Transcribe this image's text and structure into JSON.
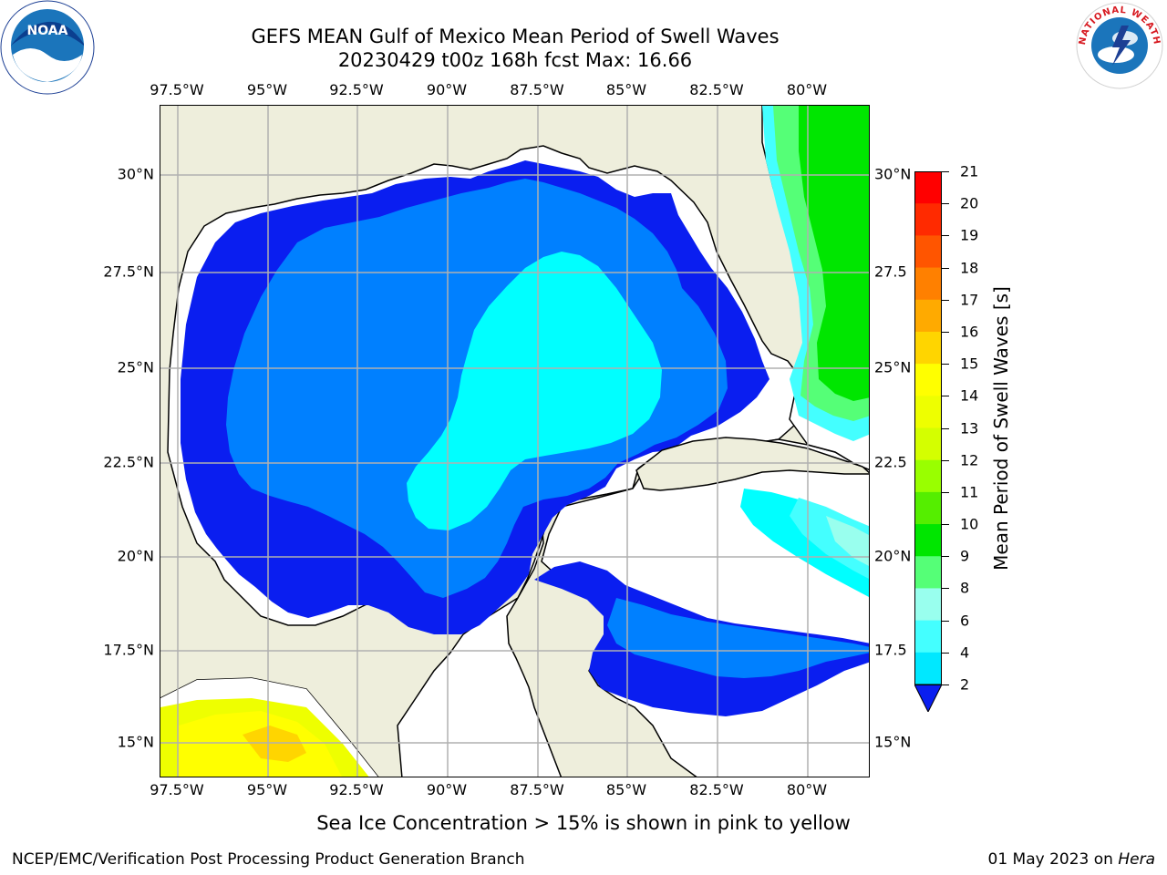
{
  "header": {
    "title_line1": "GEFS MEAN Gulf of Mexico Mean Period of Swell Waves",
    "title_line2": "20230429 t00z 168h fcst   Max: 16.66"
  },
  "axes": {
    "lon_labels": [
      "97.5°W",
      "95°W",
      "92.5°W",
      "90°W",
      "87.5°W",
      "85°W",
      "82.5°W",
      "80°W"
    ],
    "lat_labels_left": [
      "30°N",
      "27.5°N",
      "25°N",
      "22.5°N",
      "20°N",
      "17.5°N",
      "15°N"
    ],
    "lat_labels_right": [
      "30°N",
      "27.5",
      "25°N",
      "22.5",
      "20°N",
      "17.5",
      "15°N"
    ]
  },
  "colorbar": {
    "label": "Mean Period of Swell Waves [s]",
    "ticks": [
      "21",
      "20",
      "19",
      "18",
      "17",
      "16",
      "15",
      "14",
      "13",
      "12",
      "11",
      "10",
      "9",
      "8",
      "6",
      "4",
      "2"
    ],
    "colors": [
      "#ff0000",
      "#ff2a00",
      "#ff5500",
      "#ff8000",
      "#ffaa00",
      "#ffd500",
      "#ffff00",
      "#eeff00",
      "#d4ff00",
      "#99ff00",
      "#55ee00",
      "#00e600",
      "#55ff77",
      "#99ffee",
      "#44ffff",
      "#00e8ff",
      "#0080ff"
    ],
    "extend_color": "#0a1ef0"
  },
  "colors": {
    "land": "#eeeedc",
    "band_2_4": "#0a1ef0",
    "band_4_6": "#0080ff",
    "band_6_8": "#00ffff",
    "band_8_9": "#44ffff",
    "band_9_10": "#99ffee",
    "band_10_11": "#55ff77",
    "band_11_12": "#00e600",
    "band_14_15": "#eeff00",
    "band_15_16": "#ffff00",
    "band_16_17": "#ffd500"
  },
  "footer": {
    "note": "Sea Ice Concentration > 15% is shown in pink to yellow",
    "credit": "NCEP/EMC/Verification Post Processing Product Generation Branch",
    "date": "01 May 2023 on",
    "host": "Hera"
  },
  "logos": {
    "left": "NOAA",
    "right": "NATIONAL WEATHER SERVICE"
  }
}
